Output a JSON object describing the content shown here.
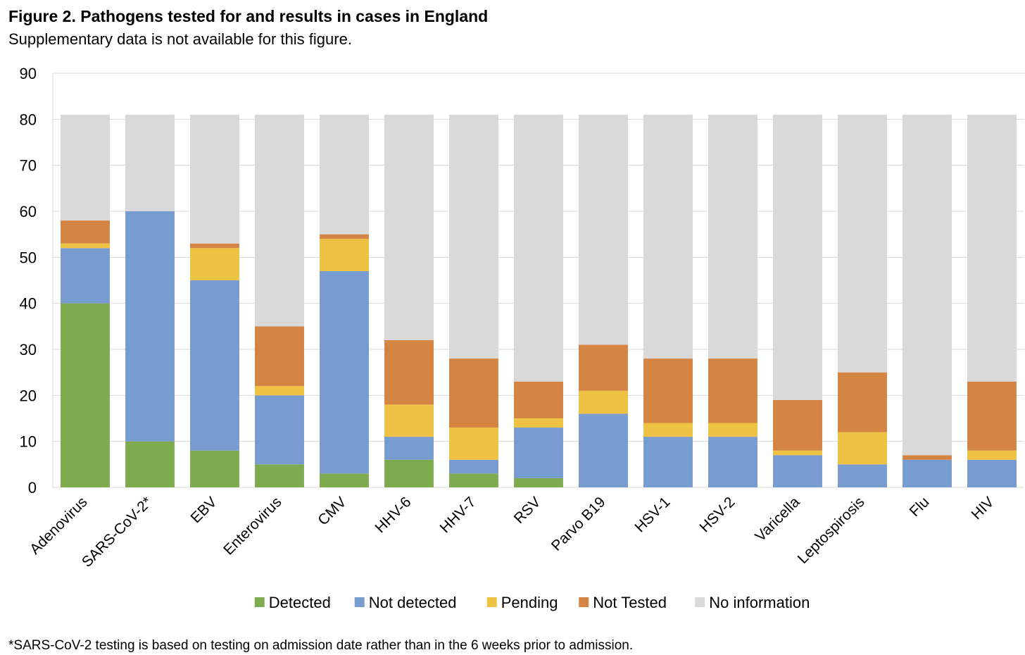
{
  "figure": {
    "title": "Figure 2. Pathogens tested for and results in cases in England",
    "subtitle": "Supplementary data is not available for this figure.",
    "footnote": "*SARS-CoV-2 testing is based on testing on admission date rather than in the 6 weeks prior to admission."
  },
  "chart_data": {
    "type": "bar",
    "stacked": true,
    "title": "",
    "xlabel": "",
    "ylabel": "",
    "ylim": [
      0,
      90
    ],
    "yticks": [
      0,
      10,
      20,
      30,
      40,
      50,
      60,
      70,
      80,
      90
    ],
    "grid": true,
    "legend_position": "bottom",
    "categories": [
      "Adenovirus",
      "SARS-CoV-2*",
      "EBV",
      "Enterovirus",
      "CMV",
      "HHV-6",
      "HHV-7",
      "RSV",
      "Parvo B19",
      "HSV-1",
      "HSV-2",
      "Varicella",
      "Leptospirosis",
      "Flu",
      "HIV"
    ],
    "series": [
      {
        "name": "Detected",
        "color": "#7FAC51",
        "values": [
          40,
          10,
          8,
          5,
          3,
          6,
          3,
          2,
          0,
          0,
          0,
          0,
          0,
          0,
          0
        ]
      },
      {
        "name": "Not detected",
        "color": "#789BD0",
        "values": [
          12,
          50,
          37,
          15,
          44,
          5,
          3,
          11,
          16,
          11,
          11,
          7,
          5,
          6,
          6
        ]
      },
      {
        "name": "Pending",
        "color": "#EEC242",
        "values": [
          1,
          0,
          7,
          2,
          7,
          7,
          7,
          2,
          5,
          3,
          3,
          1,
          7,
          0,
          2
        ]
      },
      {
        "name": "Not Tested",
        "color": "#D48443",
        "values": [
          5,
          0,
          1,
          13,
          1,
          14,
          15,
          8,
          10,
          14,
          14,
          11,
          13,
          1,
          15
        ]
      },
      {
        "name": "No information",
        "color": "#D9D9D9",
        "values": [
          23,
          21,
          28,
          46,
          26,
          49,
          53,
          58,
          50,
          53,
          53,
          62,
          56,
          74,
          58
        ]
      }
    ]
  }
}
